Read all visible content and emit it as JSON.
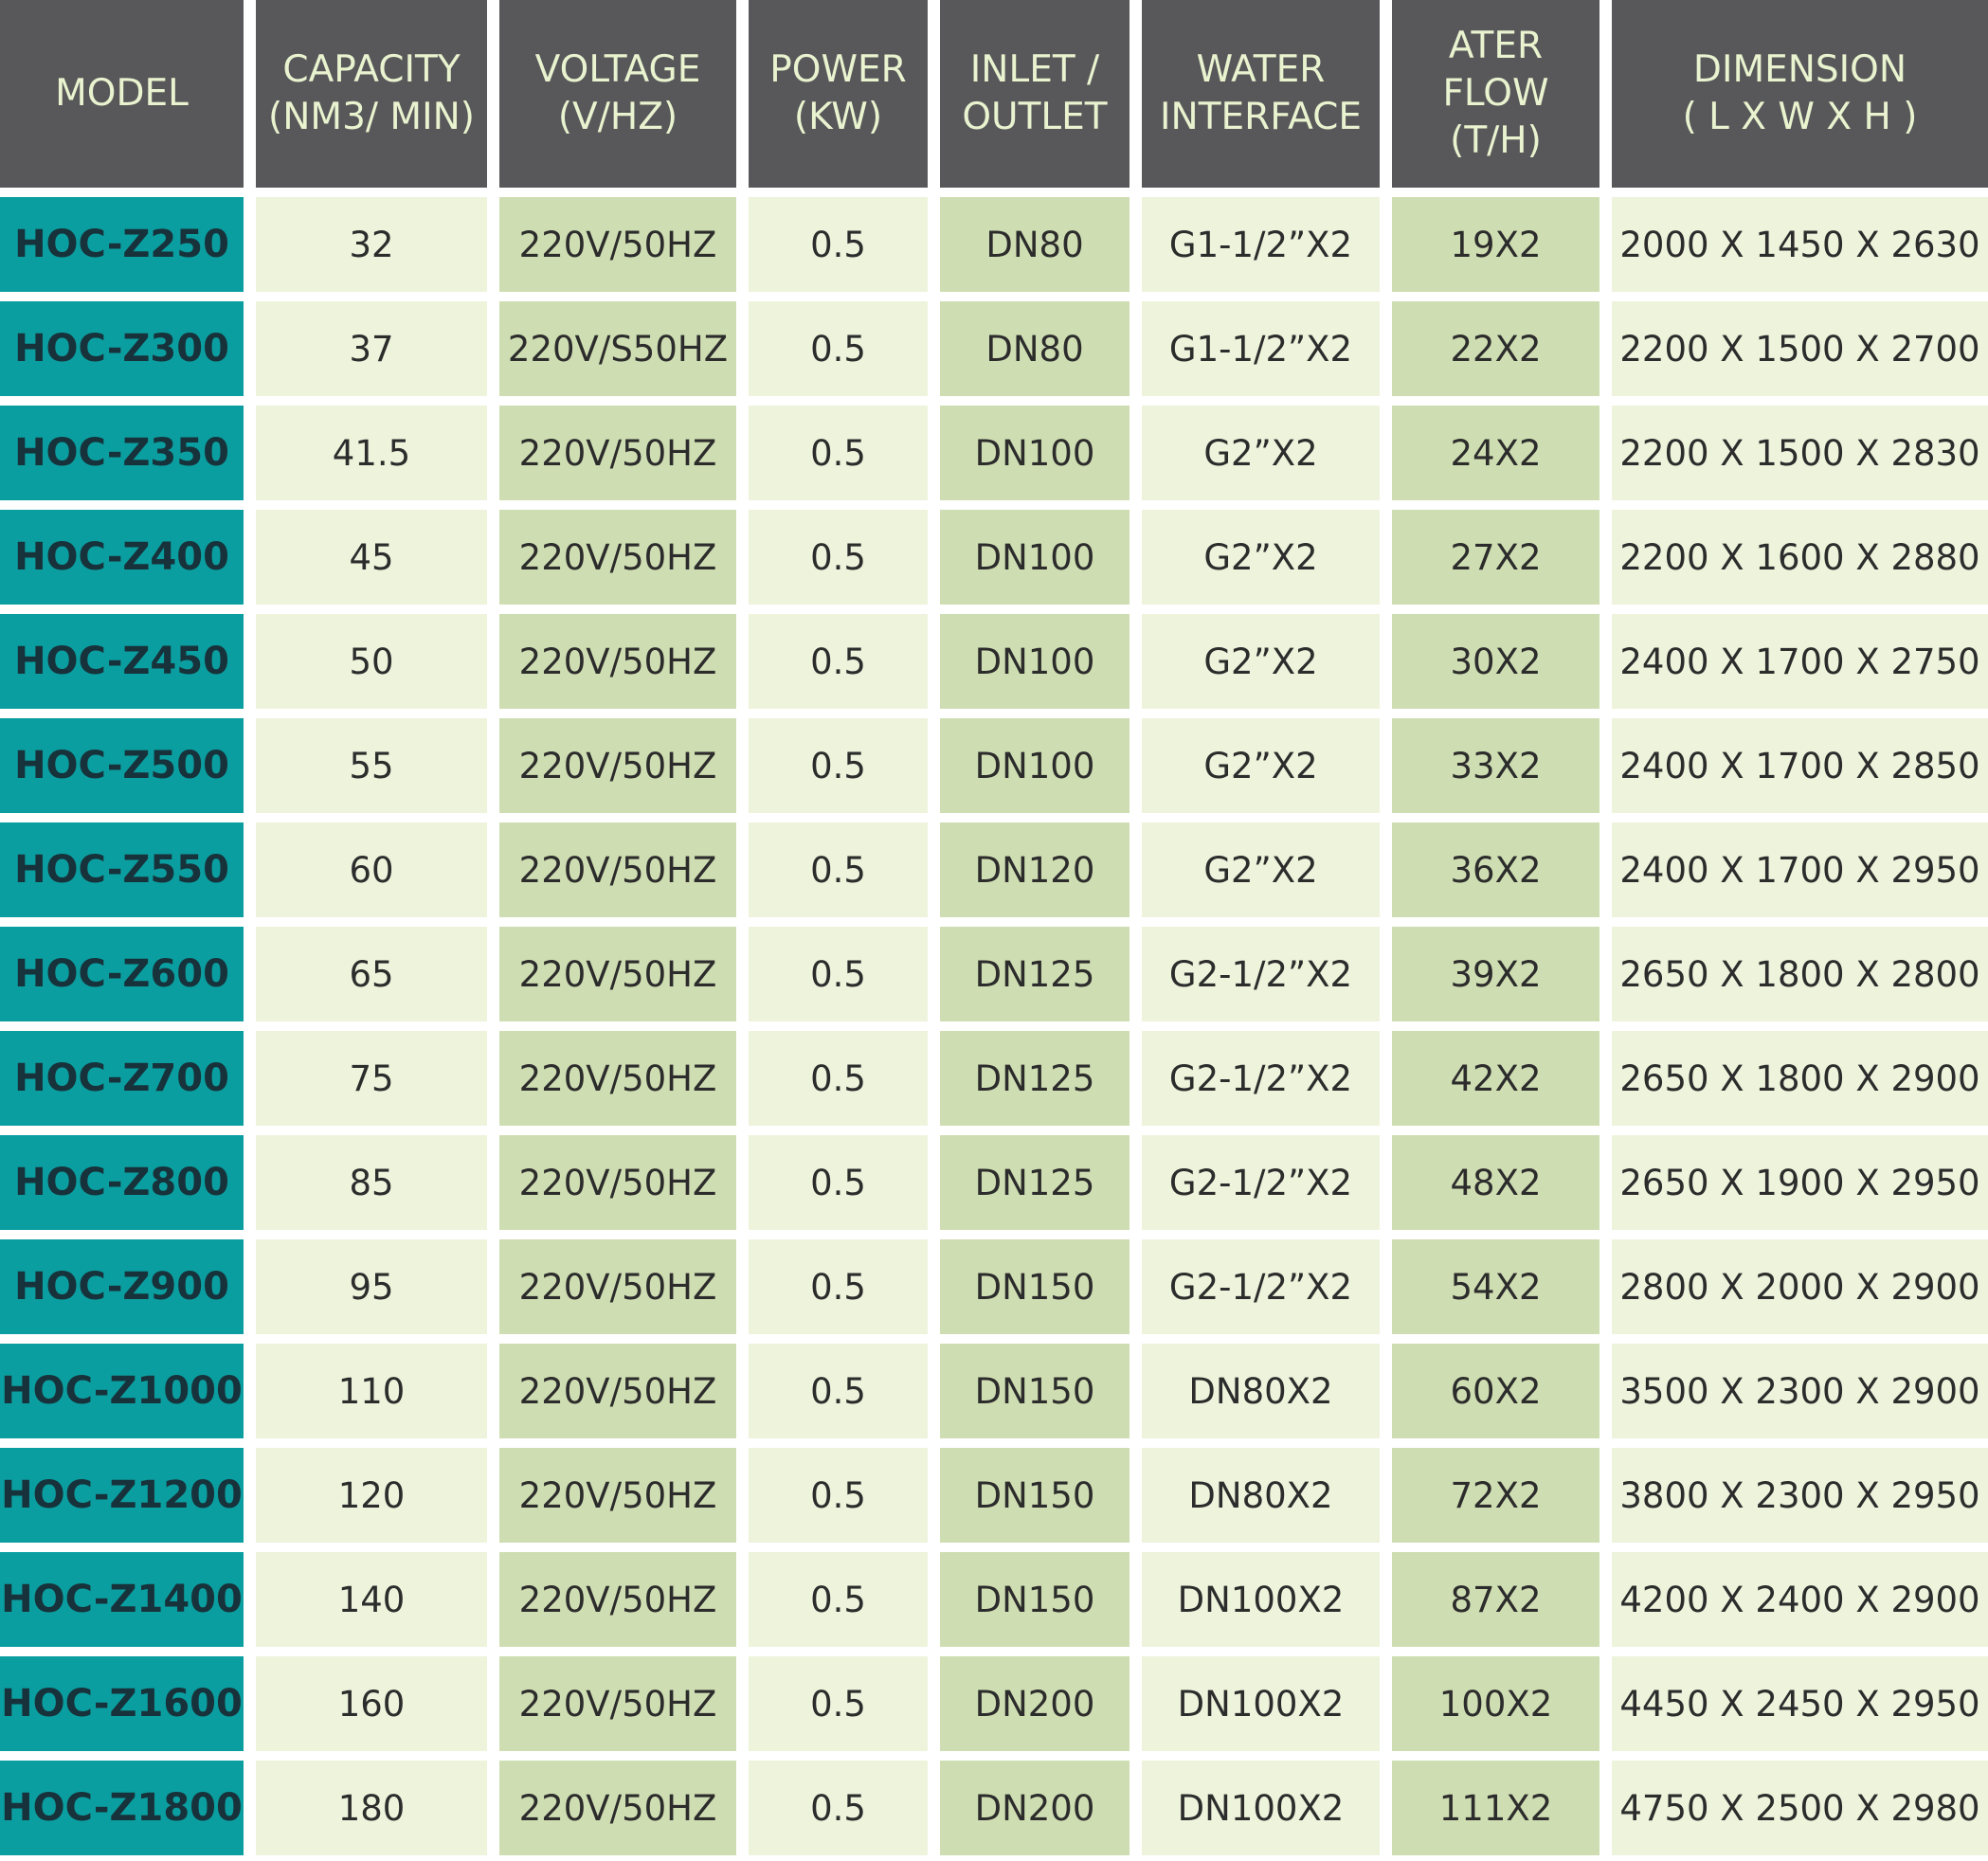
{
  "headers": [
    [
      "MODEL"
    ],
    [
      "CAPACITY",
      "(NM3/ MIN)"
    ],
    [
      "VOLTAGE",
      "(V/HZ)"
    ],
    [
      "POWER",
      "(KW)"
    ],
    [
      "INLET /",
      "OUTLET"
    ],
    [
      "WATER",
      "INTERFACE"
    ],
    [
      "ATER",
      "FLOW",
      "(T/H)"
    ],
    [
      "DIMENSION",
      "( L X W X H )"
    ]
  ],
  "rows": [
    [
      "HOC-Z250",
      "32",
      "220V/50HZ",
      "0.5",
      "DN80",
      "G1-1/2”X2",
      "19X2",
      "2000 X 1450 X 2630"
    ],
    [
      "HOC-Z300",
      "37",
      "220V/S50HZ",
      "0.5",
      "DN80",
      "G1-1/2”X2",
      "22X2",
      "2200 X 1500 X 2700"
    ],
    [
      "HOC-Z350",
      "41.5",
      "220V/50HZ",
      "0.5",
      "DN100",
      "G2”X2",
      "24X2",
      "2200 X 1500 X 2830"
    ],
    [
      "HOC-Z400",
      "45",
      "220V/50HZ",
      "0.5",
      "DN100",
      "G2”X2",
      "27X2",
      "2200 X 1600 X 2880"
    ],
    [
      "HOC-Z450",
      "50",
      "220V/50HZ",
      "0.5",
      "DN100",
      "G2”X2",
      "30X2",
      "2400 X 1700 X 2750"
    ],
    [
      "HOC-Z500",
      "55",
      "220V/50HZ",
      "0.5",
      "DN100",
      "G2”X2",
      "33X2",
      "2400 X 1700 X 2850"
    ],
    [
      "HOC-Z550",
      "60",
      "220V/50HZ",
      "0.5",
      "DN120",
      "G2”X2",
      "36X2",
      "2400 X 1700 X 2950"
    ],
    [
      "HOC-Z600",
      "65",
      "220V/50HZ",
      "0.5",
      "DN125",
      "G2-1/2”X2",
      "39X2",
      "2650 X 1800 X 2800"
    ],
    [
      "HOC-Z700",
      "75",
      "220V/50HZ",
      "0.5",
      "DN125",
      "G2-1/2”X2",
      "42X2",
      "2650 X 1800 X 2900"
    ],
    [
      "HOC-Z800",
      "85",
      "220V/50HZ",
      "0.5",
      "DN125",
      "G2-1/2”X2",
      "48X2",
      "2650 X 1900 X 2950"
    ],
    [
      "HOC-Z900",
      "95",
      "220V/50HZ",
      "0.5",
      "DN150",
      "G2-1/2”X2",
      "54X2",
      "2800 X 2000 X 2900"
    ],
    [
      "HOC-Z1000",
      "110",
      "220V/50HZ",
      "0.5",
      "DN150",
      "DN80X2",
      "60X2",
      "3500 X 2300 X 2900"
    ],
    [
      "HOC-Z1200",
      "120",
      "220V/50HZ",
      "0.5",
      "DN150",
      "DN80X2",
      "72X2",
      "3800 X 2300 X 2950"
    ],
    [
      "HOC-Z1400",
      "140",
      "220V/50HZ",
      "0.5",
      "DN150",
      "DN100X2",
      "87X2",
      "4200 X 2400 X 2900"
    ],
    [
      "HOC-Z1600",
      "160",
      "220V/50HZ",
      "0.5",
      "DN200",
      "DN100X2",
      "100X2",
      "4450 X 2450 X 2950"
    ],
    [
      "HOC-Z1800",
      "180",
      "220V/50HZ",
      "0.5",
      "DN200",
      "DN100X2",
      "111X2",
      "4750 X 2500 X 2980"
    ]
  ]
}
